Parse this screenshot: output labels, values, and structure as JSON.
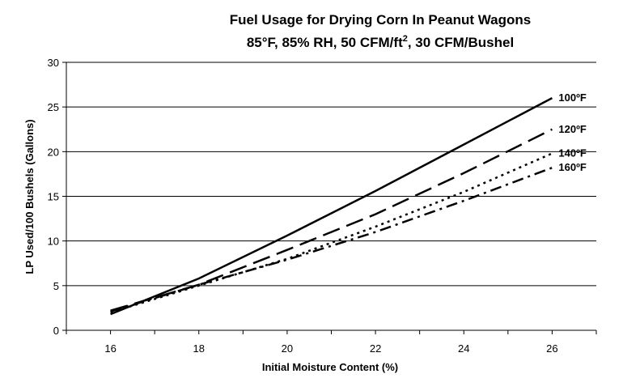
{
  "chart_data": {
    "type": "line",
    "title_line1": "Fuel Usage for Drying Corn In Peanut Wagons",
    "title_line2_prefix": "85°F, 85% RH, 50 CFM/ft",
    "title_line2_sup": "2",
    "title_line2_suffix": ", 30 CFM/Bushel",
    "xlabel": "Initial Moisture Content (%)",
    "ylabel": "LP Used/100 Bushels (Gallons)",
    "xlim": [
      15,
      27
    ],
    "ylim": [
      0,
      30
    ],
    "x_ticks": [
      16,
      18,
      20,
      22,
      24,
      26
    ],
    "y_ticks": [
      0,
      5,
      10,
      15,
      20,
      25,
      30
    ],
    "grid": "horizontal",
    "series": [
      {
        "name": "100ºF",
        "dash": "solid",
        "x": [
          16,
          18,
          20,
          22,
          24,
          26
        ],
        "y": [
          1.8,
          5.8,
          10.6,
          15.6,
          20.8,
          26.0
        ]
      },
      {
        "name": "120ºF",
        "dash": "long",
        "x": [
          16,
          18,
          20,
          22,
          24,
          26
        ],
        "y": [
          2.2,
          5.1,
          9.0,
          13.0,
          17.6,
          22.5
        ]
      },
      {
        "name": "140ºF",
        "dash": "dot",
        "x": [
          16,
          18,
          20,
          22,
          24,
          26
        ],
        "y": [
          2.0,
          5.0,
          8.0,
          11.6,
          15.5,
          19.8
        ]
      },
      {
        "name": "160ºF",
        "dash": "dash-dot",
        "x": [
          16,
          18,
          20,
          22,
          24,
          26
        ],
        "y": [
          2.1,
          5.1,
          7.9,
          11.0,
          14.5,
          18.2
        ]
      }
    ]
  }
}
